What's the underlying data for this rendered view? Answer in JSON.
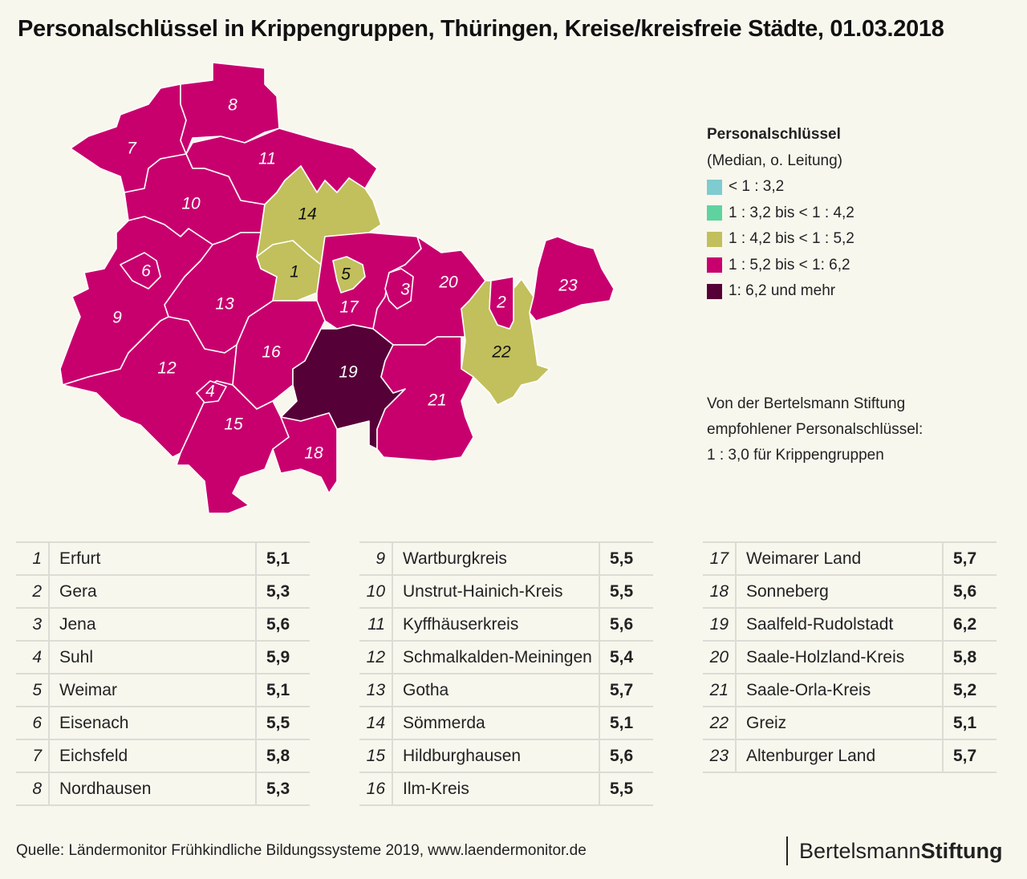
{
  "title": "Personalschlüssel in Krippengruppen, Thüringen, Kreise/kreisfreie Städte, 01.03.2018",
  "legend": {
    "title": "Personalschlüssel",
    "subtitle": "(Median, o. Leitung)",
    "items": [
      {
        "label": "< 1 : 3,2",
        "color": "#7ecbd0"
      },
      {
        "label": "1 : 3,2 bis < 1 : 4,2",
        "color": "#5ed3a0"
      },
      {
        "label": "1 : 4,2 bis < 1 : 5,2",
        "color": "#c2c05c"
      },
      {
        "label": "1 : 5,2 bis < 1: 6,2",
        "color": "#c8006e"
      },
      {
        "label": "1: 6,2 und mehr",
        "color": "#560038"
      }
    ]
  },
  "note": [
    "Von der Bertelsmann Stiftung",
    "empfohlener Personalschlüssel:",
    "1 : 3,0  für Krippengruppen"
  ],
  "regions": [
    {
      "n": "1",
      "name": "Erfurt",
      "value": "5,1"
    },
    {
      "n": "2",
      "name": "Gera",
      "value": "5,3"
    },
    {
      "n": "3",
      "name": "Jena",
      "value": "5,6"
    },
    {
      "n": "4",
      "name": "Suhl",
      "value": "5,9"
    },
    {
      "n": "5",
      "name": "Weimar",
      "value": "5,1"
    },
    {
      "n": "6",
      "name": "Eisenach",
      "value": "5,5"
    },
    {
      "n": "7",
      "name": "Eichsfeld",
      "value": "5,8"
    },
    {
      "n": "8",
      "name": "Nordhausen",
      "value": "5,3"
    },
    {
      "n": "9",
      "name": "Wartburgkreis",
      "value": "5,5"
    },
    {
      "n": "10",
      "name": "Unstrut-Hainich-Kreis",
      "value": "5,5"
    },
    {
      "n": "11",
      "name": "Kyffhäuserkreis",
      "value": "5,6"
    },
    {
      "n": "12",
      "name": "Schmalkalden-Meiningen",
      "value": "5,4"
    },
    {
      "n": "13",
      "name": "Gotha",
      "value": "5,7"
    },
    {
      "n": "14",
      "name": "Sömmerda",
      "value": "5,1"
    },
    {
      "n": "15",
      "name": "Hildburghausen",
      "value": "5,6"
    },
    {
      "n": "16",
      "name": "Ilm-Kreis",
      "value": "5,5"
    },
    {
      "n": "17",
      "name": "Weimarer Land",
      "value": "5,7"
    },
    {
      "n": "18",
      "name": "Sonneberg",
      "value": "5,6"
    },
    {
      "n": "19",
      "name": "Saalfeld-Rudolstadt",
      "value": "6,2"
    },
    {
      "n": "20",
      "name": "Saale-Holzland-Kreis",
      "value": "5,8"
    },
    {
      "n": "21",
      "name": "Saale-Orla-Kreis",
      "value": "5,2"
    },
    {
      "n": "22",
      "name": "Greiz",
      "value": "5,1"
    },
    {
      "n": "23",
      "name": "Altenburger Land",
      "value": "5,7"
    }
  ],
  "source": "Quelle: Ländermonitor Frühkindliche Bildungssysteme 2019, www.laendermonitor.de",
  "brand": {
    "part1": "Bertelsmann",
    "part2": "Stiftung"
  }
}
